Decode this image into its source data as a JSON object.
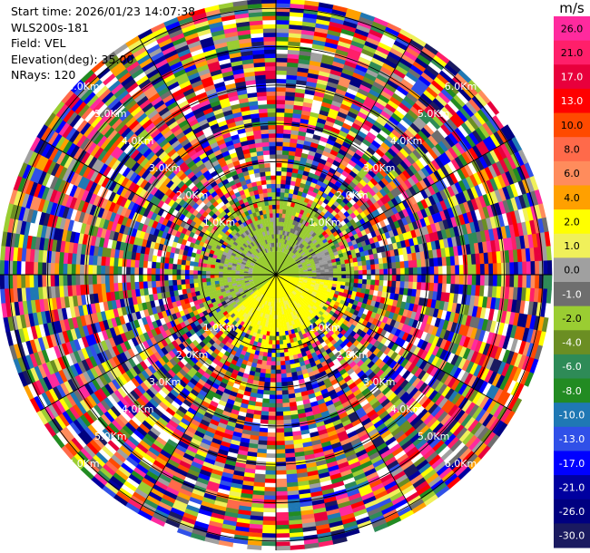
{
  "header": {
    "start_time": "Start time: 2026/01/23 14:07:38",
    "instrument": "WLS200s-181",
    "field": "Field: VEL",
    "elevation": "Elevation(deg): 35.00",
    "nrays": "NRays: 120"
  },
  "colorbar": {
    "unit": "m/s",
    "ticks": [
      "26.0",
      "21.0",
      "17.0",
      "13.0",
      "10.0",
      "8.0",
      "6.0",
      "4.0",
      "2.0",
      "1.0",
      "0.0",
      "-1.0",
      "-2.0",
      "-4.0",
      "-6.0",
      "-8.0",
      "-10.0",
      "-13.0",
      "-17.0",
      "-21.0",
      "-26.0",
      "-30.0"
    ],
    "colors": [
      "#ff2a9e",
      "#ff1f6a",
      "#e8003c",
      "#ff0000",
      "#ff4a00",
      "#ff6a4a",
      "#ff8c5c",
      "#ffa000",
      "#ffff00",
      "#f0f05a",
      "#a0a0a0",
      "#6e6e6e",
      "#9acd32",
      "#6b8e23",
      "#2e8b57",
      "#228b22",
      "#1f78b4",
      "#3050e8",
      "#0000ff",
      "#0000a0",
      "#000080",
      "#1a1a60"
    ]
  },
  "chart_data": {
    "type": "heatmap",
    "subtype": "polar-ppi",
    "field": "VEL",
    "units": "m/s",
    "elevation_deg": 35.0,
    "n_rays": 120,
    "range_rings_km": [
      1.0,
      2.0,
      3.0,
      4.0,
      5.0,
      6.0
    ],
    "range_labels": [
      "1.0Km",
      "2.0Km",
      "3.0Km",
      "4.0Km",
      "5.0Km",
      "6.0Km"
    ],
    "color_scale_min": -30.0,
    "color_scale_max": 26.0
  }
}
